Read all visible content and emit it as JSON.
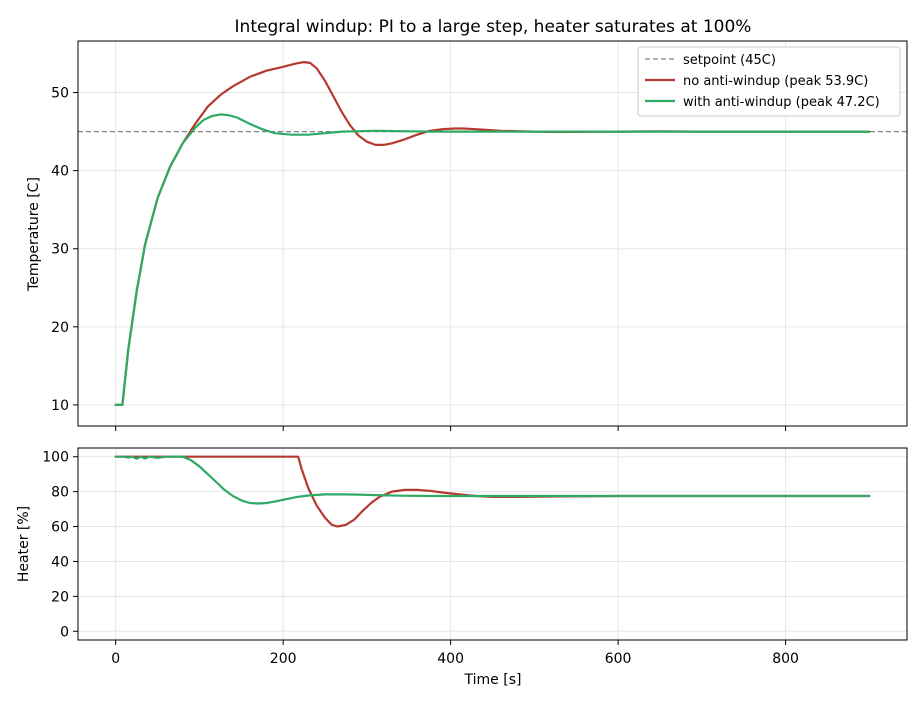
{
  "chart_data": [
    {
      "type": "line",
      "title": "Integral windup: PI to a large step, heater saturates at 100%",
      "xlabel": "",
      "ylabel": "Temperature  [C]",
      "xlim": [
        -45,
        945
      ],
      "ylim": [
        7.3,
        56.6
      ],
      "xticks": [
        0,
        200,
        400,
        600,
        800
      ],
      "yticks": [
        10,
        20,
        30,
        40,
        50
      ],
      "show_x_tick_labels": false,
      "grid": true,
      "legend_position": "top-right",
      "reference_lines": [
        {
          "name": "setpoint (45C)",
          "y": 45,
          "color": "#808080",
          "style": "dashed"
        }
      ],
      "series": [
        {
          "name": "no anti-windup  (peak 53.9C)",
          "color": "#b5392f",
          "x": [
            0,
            8,
            15,
            25,
            35,
            50,
            65,
            80,
            95,
            110,
            125,
            140,
            160,
            180,
            200,
            215,
            225,
            232,
            240,
            250,
            260,
            270,
            280,
            290,
            300,
            310,
            320,
            330,
            345,
            360,
            375,
            390,
            405,
            415,
            430,
            445,
            460,
            480,
            500,
            530,
            560,
            600,
            650,
            700,
            800,
            900
          ],
          "y": [
            10,
            10,
            17,
            24.5,
            30.5,
            36.5,
            40.5,
            43.5,
            46,
            48.2,
            49.7,
            50.8,
            52,
            52.8,
            53.3,
            53.7,
            53.9,
            53.8,
            53.1,
            51.5,
            49.5,
            47.5,
            45.8,
            44.5,
            43.7,
            43.3,
            43.3,
            43.5,
            44,
            44.6,
            45.1,
            45.3,
            45.4,
            45.4,
            45.3,
            45.2,
            45.1,
            45.05,
            45,
            44.95,
            44.97,
            45,
            45.03,
            45,
            45,
            45
          ]
        },
        {
          "name": "with anti-windup  (peak 47.2C)",
          "color": "#2eaa65",
          "x": [
            0,
            8,
            15,
            25,
            35,
            50,
            65,
            80,
            95,
            105,
            115,
            125,
            135,
            145,
            160,
            175,
            190,
            210,
            230,
            250,
            270,
            290,
            310,
            340,
            380,
            450,
            550,
            700,
            900
          ],
          "y": [
            10,
            10,
            17,
            24.5,
            30.5,
            36.5,
            40.5,
            43.5,
            45.5,
            46.5,
            47,
            47.2,
            47.1,
            46.8,
            46,
            45.3,
            44.8,
            44.6,
            44.6,
            44.8,
            45,
            45.05,
            45.1,
            45.05,
            45,
            45,
            45,
            45,
            45
          ]
        }
      ]
    },
    {
      "type": "line",
      "title": "",
      "xlabel": "Time  [s]",
      "ylabel": "Heater  [%]",
      "xlim": [
        -45,
        945
      ],
      "ylim": [
        -5,
        105
      ],
      "xticks": [
        0,
        200,
        400,
        600,
        800
      ],
      "yticks": [
        0,
        20,
        40,
        60,
        80,
        100
      ],
      "show_x_tick_labels": true,
      "grid": true,
      "series": [
        {
          "name": "no anti-windup",
          "color": "#b5392f",
          "x": [
            0,
            100,
            200,
            218,
            222,
            230,
            240,
            250,
            258,
            265,
            275,
            285,
            295,
            305,
            315,
            330,
            345,
            360,
            375,
            390,
            410,
            430,
            450,
            480,
            520,
            600,
            700,
            900
          ],
          "y": [
            100,
            100,
            100,
            100,
            93,
            82,
            72,
            65,
            61,
            60,
            61,
            64,
            69,
            73.5,
            77,
            80,
            81,
            81,
            80.5,
            79.5,
            78.5,
            77.5,
            77,
            77,
            77.2,
            77.5,
            77.5,
            77.5
          ]
        },
        {
          "name": "with anti-windup",
          "color": "#2eaa65",
          "x": [
            0,
            10,
            15,
            20,
            25,
            30,
            35,
            40,
            50,
            60,
            70,
            80,
            90,
            100,
            110,
            120,
            130,
            140,
            150,
            160,
            170,
            180,
            190,
            200,
            215,
            230,
            250,
            270,
            290,
            310,
            340,
            380,
            450,
            550,
            700,
            900
          ],
          "y": [
            100,
            100,
            99.5,
            100,
            98.8,
            100,
            99,
            100,
            99.3,
            100,
            100,
            100,
            98,
            94.5,
            90,
            85.5,
            81,
            77.5,
            75,
            73.5,
            73.2,
            73.5,
            74.3,
            75.3,
            76.8,
            77.8,
            78.4,
            78.5,
            78.3,
            78,
            77.7,
            77.5,
            77.5,
            77.5,
            77.5,
            77.5
          ]
        }
      ]
    }
  ]
}
